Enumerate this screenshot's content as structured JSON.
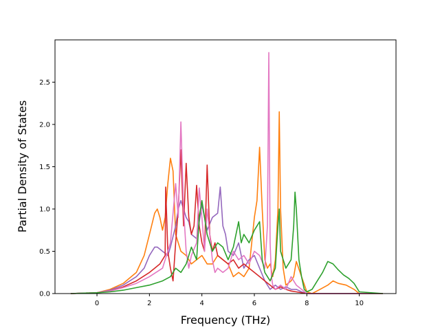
{
  "chart_data": {
    "type": "line",
    "title": "",
    "xlabel": "Frequency (THz)",
    "ylabel": "Partial Density of States",
    "xlim": [
      -1.6,
      11.4
    ],
    "ylim": [
      0.0,
      3.0
    ],
    "xticks": [
      0,
      2,
      4,
      6,
      8,
      10
    ],
    "yticks": [
      0.0,
      0.5,
      1.0,
      1.5,
      2.0,
      2.5
    ],
    "xtick_labels": [
      "0",
      "2",
      "4",
      "6",
      "8",
      "10"
    ],
    "ytick_labels": [
      "0.0",
      "0.5",
      "1.0",
      "1.5",
      "2.0",
      "2.5"
    ],
    "grid": false,
    "legend": "none",
    "series": [
      {
        "color": "#ff7f0e",
        "x": [
          -1.0,
          0.0,
          0.5,
          1.0,
          1.5,
          1.8,
          2.0,
          2.2,
          2.3,
          2.4,
          2.5,
          2.6,
          2.7,
          2.8,
          2.9,
          3.0,
          3.2,
          3.4,
          3.6,
          3.8,
          4.0,
          4.2,
          4.4,
          4.6,
          4.8,
          5.0,
          5.2,
          5.4,
          5.6,
          5.8,
          6.0,
          6.1,
          6.2,
          6.3,
          6.4,
          6.5,
          6.6,
          6.7,
          6.8,
          6.9,
          6.95,
          7.0,
          7.1,
          7.2,
          7.4,
          7.5,
          7.6,
          7.8,
          8.0,
          8.2,
          8.5,
          8.8,
          9.0,
          9.2,
          9.5,
          9.8,
          10.0,
          10.9
        ],
        "y": [
          0.0,
          0.01,
          0.05,
          0.12,
          0.25,
          0.45,
          0.7,
          0.95,
          1.0,
          0.9,
          0.75,
          0.9,
          1.3,
          1.6,
          1.45,
          0.7,
          0.5,
          0.45,
          0.35,
          0.4,
          0.45,
          0.35,
          0.35,
          0.45,
          0.4,
          0.35,
          0.2,
          0.25,
          0.2,
          0.3,
          0.9,
          1.1,
          1.73,
          1.0,
          0.4,
          0.3,
          0.35,
          0.2,
          0.4,
          1.0,
          2.15,
          1.0,
          0.3,
          0.1,
          0.15,
          0.2,
          0.38,
          0.2,
          0.02,
          0.0,
          0.05,
          0.1,
          0.15,
          0.12,
          0.1,
          0.05,
          0.0,
          0.0
        ]
      },
      {
        "color": "#9467bd",
        "x": [
          -1.0,
          0.0,
          0.5,
          1.0,
          1.5,
          1.8,
          2.0,
          2.2,
          2.3,
          2.5,
          2.7,
          2.8,
          3.0,
          3.1,
          3.2,
          3.3,
          3.4,
          3.5,
          3.6,
          3.8,
          4.0,
          4.2,
          4.4,
          4.6,
          4.7,
          4.8,
          4.9,
          5.0,
          5.2,
          5.4,
          5.6,
          5.8,
          6.0,
          6.2,
          6.4,
          6.6,
          6.8,
          7.0,
          7.2,
          7.4,
          7.6,
          7.8,
          8.0,
          10.9
        ],
        "y": [
          0.0,
          0.01,
          0.04,
          0.1,
          0.2,
          0.3,
          0.45,
          0.55,
          0.55,
          0.5,
          0.45,
          0.55,
          0.8,
          1.0,
          1.1,
          1.0,
          0.9,
          0.85,
          0.7,
          0.65,
          1.05,
          0.75,
          0.9,
          0.95,
          1.26,
          0.8,
          0.7,
          0.5,
          0.45,
          0.6,
          0.3,
          0.4,
          0.45,
          0.3,
          0.15,
          0.05,
          0.1,
          0.05,
          0.08,
          0.05,
          0.05,
          0.02,
          0.0,
          0.0
        ]
      },
      {
        "color": "#d62728",
        "x": [
          -1.0,
          0.0,
          0.5,
          1.0,
          1.5,
          2.0,
          2.2,
          2.4,
          2.6,
          2.62,
          2.7,
          2.8,
          2.9,
          3.0,
          3.1,
          3.2,
          3.3,
          3.4,
          3.5,
          3.6,
          3.7,
          3.8,
          3.9,
          4.0,
          4.1,
          4.2,
          4.3,
          4.4,
          4.5,
          4.6,
          4.8,
          5.0,
          5.2,
          5.4,
          5.6,
          5.8,
          6.0,
          6.2,
          6.4,
          6.6,
          6.8,
          7.0,
          7.2,
          7.4,
          7.6,
          8.0,
          10.9
        ],
        "y": [
          0.0,
          0.01,
          0.03,
          0.08,
          0.15,
          0.25,
          0.3,
          0.35,
          0.45,
          1.26,
          0.5,
          0.3,
          0.15,
          0.6,
          1.0,
          1.7,
          0.8,
          1.54,
          0.9,
          0.7,
          0.8,
          1.28,
          0.8,
          0.6,
          0.5,
          1.52,
          0.7,
          0.5,
          0.6,
          0.45,
          0.4,
          0.35,
          0.4,
          0.3,
          0.35,
          0.3,
          0.25,
          0.2,
          0.15,
          0.1,
          0.05,
          0.08,
          0.05,
          0.03,
          0.02,
          0.0,
          0.0
        ]
      },
      {
        "color": "#e377c2",
        "x": [
          -1.0,
          0.0,
          0.5,
          1.0,
          1.5,
          2.0,
          2.5,
          2.8,
          3.0,
          3.1,
          3.2,
          3.3,
          3.4,
          3.5,
          3.6,
          3.8,
          3.9,
          4.0,
          4.1,
          4.2,
          4.4,
          4.5,
          4.6,
          4.8,
          5.0,
          5.2,
          5.4,
          5.6,
          5.8,
          6.0,
          6.2,
          6.4,
          6.5,
          6.55,
          6.6,
          6.65,
          6.7,
          6.8,
          7.0,
          7.2,
          7.4,
          7.6,
          8.0,
          10.9
        ],
        "y": [
          0.0,
          0.01,
          0.03,
          0.07,
          0.12,
          0.2,
          0.3,
          0.6,
          1.3,
          0.9,
          2.03,
          1.0,
          0.5,
          0.3,
          0.45,
          0.6,
          1.25,
          0.9,
          0.5,
          1.0,
          0.4,
          0.25,
          0.3,
          0.25,
          0.3,
          0.5,
          0.4,
          0.45,
          0.35,
          0.5,
          0.45,
          0.3,
          0.8,
          2.85,
          0.6,
          0.2,
          0.1,
          0.05,
          0.1,
          0.05,
          0.2,
          0.1,
          0.0,
          0.0
        ]
      },
      {
        "color": "#2ca02c",
        "x": [
          -1.0,
          0.0,
          0.5,
          1.0,
          1.5,
          2.0,
          2.5,
          2.8,
          3.0,
          3.2,
          3.4,
          3.6,
          3.8,
          3.9,
          4.0,
          4.2,
          4.4,
          4.6,
          4.8,
          5.0,
          5.2,
          5.4,
          5.5,
          5.6,
          5.8,
          6.0,
          6.2,
          6.3,
          6.4,
          6.6,
          6.8,
          6.9,
          6.95,
          7.0,
          7.2,
          7.4,
          7.5,
          7.55,
          7.6,
          7.7,
          7.8,
          7.9,
          8.0,
          8.2,
          8.4,
          8.6,
          8.8,
          9.0,
          9.2,
          9.4,
          9.6,
          9.8,
          10.0,
          10.9
        ],
        "y": [
          0.0,
          0.01,
          0.02,
          0.04,
          0.07,
          0.1,
          0.15,
          0.2,
          0.3,
          0.25,
          0.35,
          0.55,
          0.4,
          0.9,
          1.1,
          0.7,
          0.5,
          0.6,
          0.55,
          0.4,
          0.55,
          0.85,
          0.6,
          0.7,
          0.6,
          0.75,
          0.85,
          0.4,
          0.25,
          0.15,
          0.3,
          0.8,
          1.0,
          0.5,
          0.3,
          0.4,
          0.8,
          1.2,
          1.0,
          0.4,
          0.2,
          0.05,
          0.02,
          0.05,
          0.15,
          0.25,
          0.38,
          0.35,
          0.28,
          0.22,
          0.18,
          0.12,
          0.02,
          0.0
        ]
      }
    ]
  }
}
